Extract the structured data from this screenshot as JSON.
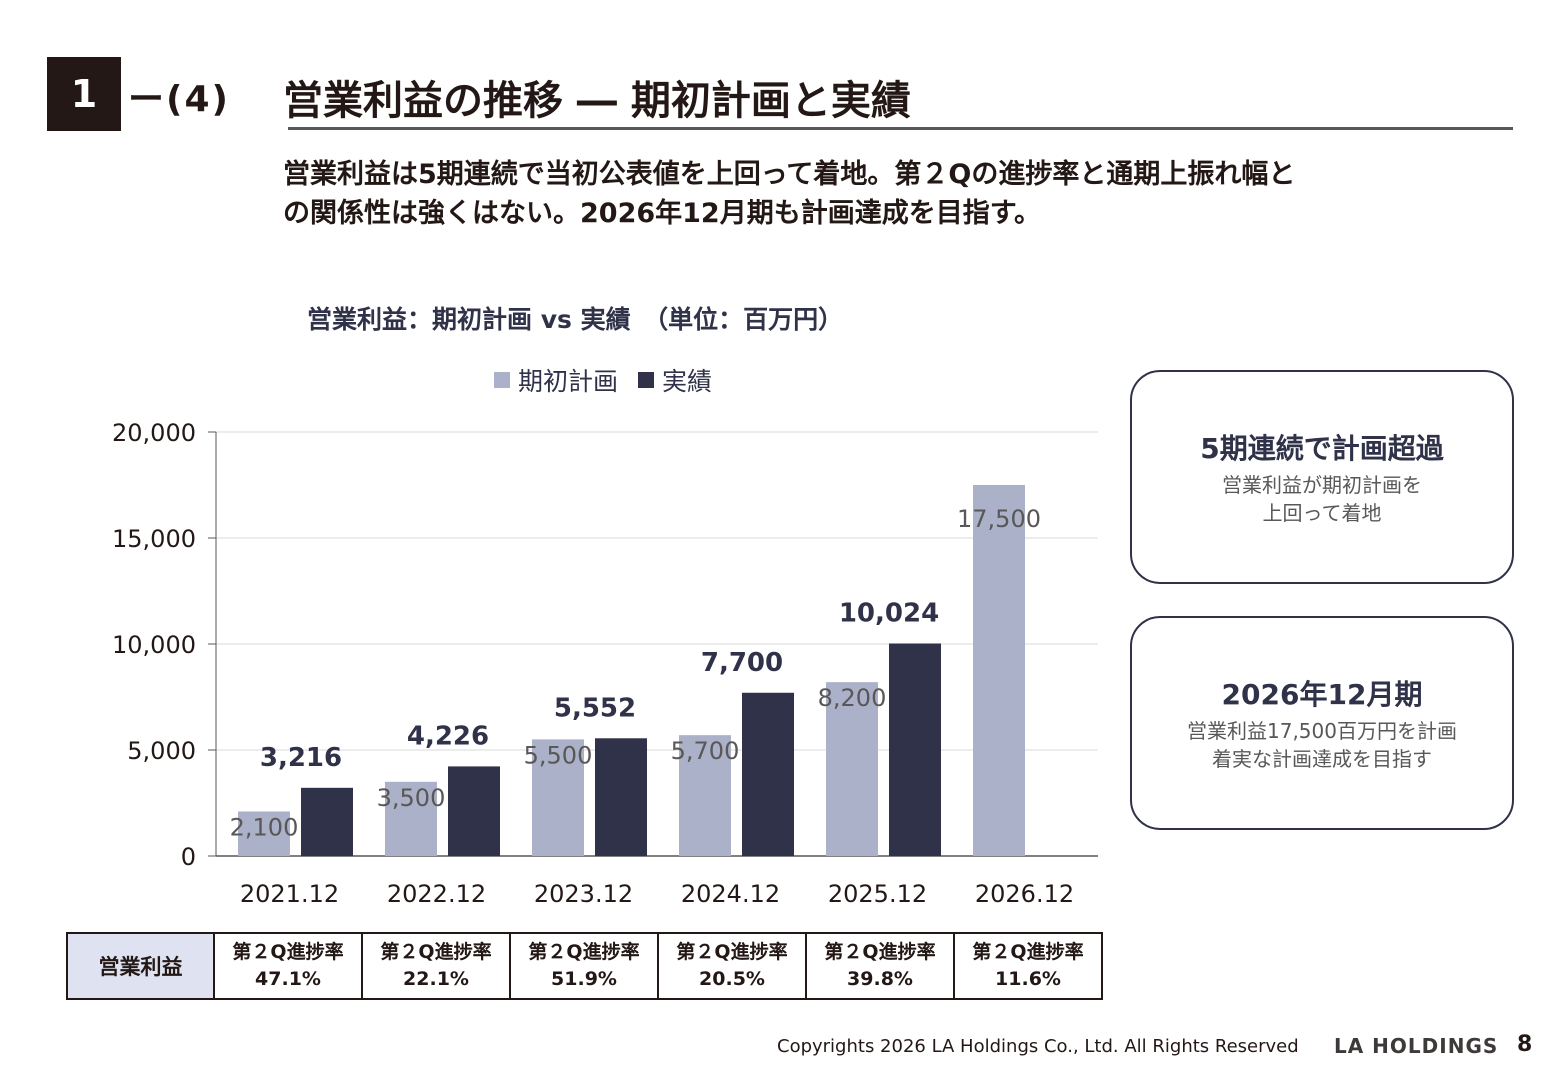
{
  "header": {
    "section_number": "1",
    "section_sub": "ー(4)",
    "title": "営業利益の推移 ― 期初計画と実績"
  },
  "lead": {
    "line1": "営業利益は5期連続で当初公表値を上回って着地。第２Qの進捗率と通期上振れ幅と",
    "line2": "の関係性は強くはない。2026年12月期も計画達成を目指す。"
  },
  "colors": {
    "plan": "#abb1c8",
    "actual": "#2f3249",
    "grid": "#d9d9d9",
    "axis": "#595757"
  },
  "chart_data": {
    "type": "bar",
    "title": "営業利益：期初計画 vs 実績　（単位：百万円）",
    "categories": [
      "2021.12",
      "2022.12",
      "2023.12",
      "2024.12",
      "2025.12",
      "2026.12"
    ],
    "series": [
      {
        "name": "期初計画",
        "values": [
          2100,
          3500,
          5500,
          5700,
          8200,
          17500
        ],
        "labels": [
          "2,100",
          "3,500",
          "5,500",
          "5,700",
          "8,200",
          "17,500"
        ]
      },
      {
        "name": "実績",
        "values": [
          3216,
          4226,
          5552,
          7700,
          10024,
          null
        ],
        "labels": [
          "3,216",
          "4,226",
          "5,552",
          "7,700",
          "10,024",
          ""
        ]
      }
    ],
    "ylim": [
      0,
      20000
    ],
    "yticks": [
      0,
      5000,
      10000,
      15000,
      20000
    ],
    "ytick_labels": [
      "0",
      "5,000",
      "10,000",
      "15,000",
      "20,000"
    ],
    "grid": true,
    "legend": "top-center"
  },
  "callouts": [
    {
      "heading": "5期連続で計画超過",
      "lines": [
        "営業利益が期初計画を",
        "上回って着地"
      ]
    },
    {
      "heading": "2026年12月期",
      "lines": [
        "営業利益17,500百万円を計画",
        "着実な計画達成を目指す"
      ]
    }
  ],
  "progress_table": {
    "row_label": "営業利益",
    "cells": [
      {
        "label": "第２Q進捗率",
        "value": "47.1%"
      },
      {
        "label": "第２Q進捗率",
        "value": "22.1%"
      },
      {
        "label": "第２Q進捗率",
        "value": "51.9%"
      },
      {
        "label": "第２Q進捗率",
        "value": "20.5%"
      },
      {
        "label": "第２Q進捗率",
        "value": "39.8%"
      },
      {
        "label": "第２Q進捗率",
        "value": "11.6%"
      }
    ]
  },
  "footer": {
    "copyright": "Copyrights 2026 LA Holdings Co., Ltd.  All Rights Reserved",
    "brand": "LA HOLDINGS",
    "page_number": "8"
  }
}
